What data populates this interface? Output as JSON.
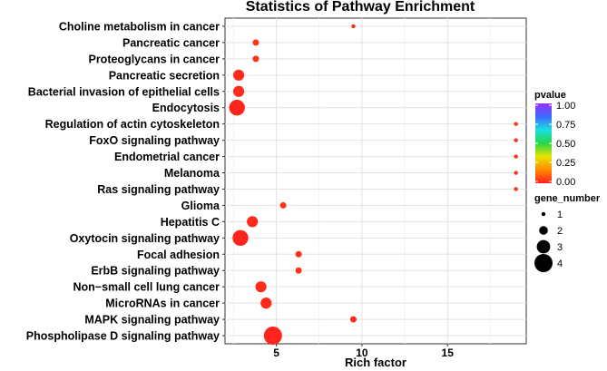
{
  "chart_data": {
    "type": "scatter",
    "title": "Statistics of Pathway Enrichment",
    "xlabel": "Rich factor",
    "ylabel": "",
    "xlim": [
      2,
      19.6
    ],
    "xticks": [
      5,
      10,
      15
    ],
    "pathways": [
      {
        "name": "Choline metabolism in cancer",
        "rich_factor": 9.5,
        "pvalue": 0.02,
        "gene_number": 1
      },
      {
        "name": "Pancreatic cancer",
        "rich_factor": 3.8,
        "pvalue": 0.03,
        "gene_number": 1.5
      },
      {
        "name": "Proteoglycans in cancer",
        "rich_factor": 3.8,
        "pvalue": 0.03,
        "gene_number": 1.5
      },
      {
        "name": "Pancreatic secretion",
        "rich_factor": 2.8,
        "pvalue": 0.02,
        "gene_number": 2.5
      },
      {
        "name": "Bacterial invasion of epithelial cells",
        "rich_factor": 2.8,
        "pvalue": 0.02,
        "gene_number": 2.5
      },
      {
        "name": "Endocytosis",
        "rich_factor": 2.7,
        "pvalue": 0.01,
        "gene_number": 3.5
      },
      {
        "name": "Regulation of actin cytoskeleton",
        "rich_factor": 19.0,
        "pvalue": 0.03,
        "gene_number": 1
      },
      {
        "name": "FoxO signaling pathway",
        "rich_factor": 19.0,
        "pvalue": 0.03,
        "gene_number": 1
      },
      {
        "name": "Endometrial cancer",
        "rich_factor": 19.0,
        "pvalue": 0.03,
        "gene_number": 1
      },
      {
        "name": "Melanoma",
        "rich_factor": 19.0,
        "pvalue": 0.03,
        "gene_number": 1
      },
      {
        "name": "Ras signaling pathway",
        "rich_factor": 19.0,
        "pvalue": 0.03,
        "gene_number": 1
      },
      {
        "name": "Glioma",
        "rich_factor": 5.4,
        "pvalue": 0.03,
        "gene_number": 1.5
      },
      {
        "name": "Hepatitis C",
        "rich_factor": 3.6,
        "pvalue": 0.02,
        "gene_number": 2.5
      },
      {
        "name": "Oxytocin signaling pathway",
        "rich_factor": 2.9,
        "pvalue": 0.01,
        "gene_number": 3.5
      },
      {
        "name": "Focal adhesion",
        "rich_factor": 6.3,
        "pvalue": 0.03,
        "gene_number": 1.5
      },
      {
        "name": "ErbB signaling pathway",
        "rich_factor": 6.3,
        "pvalue": 0.03,
        "gene_number": 1.5
      },
      {
        "name": "Non−small cell lung cancer",
        "rich_factor": 4.1,
        "pvalue": 0.02,
        "gene_number": 2.5
      },
      {
        "name": "MicroRNAs in cancer",
        "rich_factor": 4.4,
        "pvalue": 0.02,
        "gene_number": 2.5
      },
      {
        "name": "MAPK signaling pathway",
        "rich_factor": 9.5,
        "pvalue": 0.02,
        "gene_number": 1.5
      },
      {
        "name": "Phospholipase D signaling pathway",
        "rich_factor": 4.8,
        "pvalue": 0.01,
        "gene_number": 4
      }
    ],
    "legend_color": {
      "title": "pvalue",
      "labels": [
        "1.00",
        "0.75",
        "0.50",
        "0.25",
        "0.00"
      ],
      "colors": [
        "#9b30ff",
        "#3b6cff",
        "#19e0e0",
        "#29d64a",
        "#e8e200",
        "#ff8a00",
        "#ff1e1e"
      ]
    },
    "legend_size": {
      "title": "gene_number",
      "labels": [
        "1",
        "2",
        "3",
        "4"
      ],
      "values": [
        1,
        2,
        3,
        4
      ]
    },
    "grid": true
  }
}
